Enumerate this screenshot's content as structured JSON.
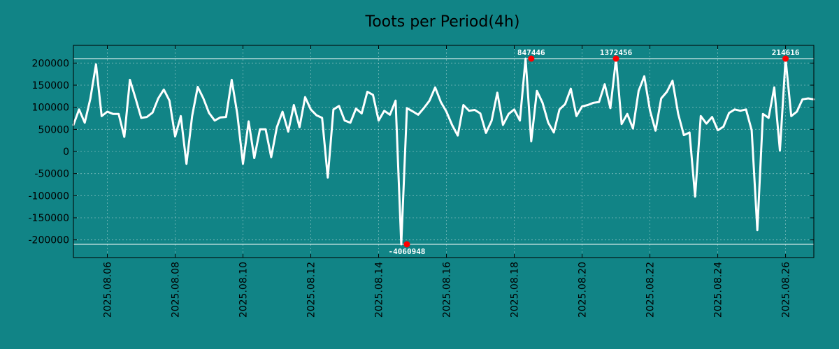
{
  "chart_data": {
    "type": "line",
    "title": "Toots per Period(4h)",
    "xlabel": "",
    "ylabel": "",
    "background_color": "#118486",
    "line_color": "#ffffff",
    "marker_color": "#ff0000",
    "grid": true,
    "legend": "none",
    "xlim": [
      "2025-08-05T00:00",
      "2025-08-26T20:00"
    ],
    "ylim": [
      -240000,
      240000
    ],
    "clip_bounds": [
      -210000,
      210000
    ],
    "y_ticks": [
      {
        "value": 200000,
        "label": "200000"
      },
      {
        "value": 150000,
        "label": "150000"
      },
      {
        "value": 100000,
        "label": "100000"
      },
      {
        "value": 50000,
        "label": "50000"
      },
      {
        "value": 0,
        "label": "0"
      },
      {
        "value": -50000,
        "label": "-50000"
      },
      {
        "value": -100000,
        "label": "-100000"
      },
      {
        "value": -150000,
        "label": "-150000"
      },
      {
        "value": -200000,
        "label": "-200000"
      }
    ],
    "x_ticks": [
      {
        "value": "2025-08-06T00:00",
        "label": "2025.08.06"
      },
      {
        "value": "2025-08-08T00:00",
        "label": "2025.08.08"
      },
      {
        "value": "2025-08-10T00:00",
        "label": "2025.08.10"
      },
      {
        "value": "2025-08-12T00:00",
        "label": "2025.08.12"
      },
      {
        "value": "2025-08-14T00:00",
        "label": "2025.08.14"
      },
      {
        "value": "2025-08-16T00:00",
        "label": "2025.08.16"
      },
      {
        "value": "2025-08-18T00:00",
        "label": "2025.08.18"
      },
      {
        "value": "2025-08-20T00:00",
        "label": "2025.08.20"
      },
      {
        "value": "2025-08-22T00:00",
        "label": "2025.08.22"
      },
      {
        "value": "2025-08-24T00:00",
        "label": "2025.08.24"
      },
      {
        "value": "2025-08-26T00:00",
        "label": "2025.08.26"
      }
    ],
    "series": [
      {
        "x": [
          "2025-08-05T00:00",
          "2025-08-05T04:00",
          "2025-08-05T08:00",
          "2025-08-05T12:00",
          "2025-08-05T16:00",
          "2025-08-05T20:00",
          "2025-08-06T00:00",
          "2025-08-06T04:00",
          "2025-08-06T08:00",
          "2025-08-06T12:00",
          "2025-08-06T16:00",
          "2025-08-06T20:00",
          "2025-08-07T00:00",
          "2025-08-07T04:00",
          "2025-08-07T08:00",
          "2025-08-07T12:00",
          "2025-08-07T16:00",
          "2025-08-07T20:00",
          "2025-08-08T00:00",
          "2025-08-08T04:00",
          "2025-08-08T08:00",
          "2025-08-08T12:00",
          "2025-08-08T16:00",
          "2025-08-08T20:00",
          "2025-08-09T00:00",
          "2025-08-09T04:00",
          "2025-08-09T08:00",
          "2025-08-09T12:00",
          "2025-08-09T16:00",
          "2025-08-09T20:00",
          "2025-08-10T00:00",
          "2025-08-10T04:00",
          "2025-08-10T08:00",
          "2025-08-10T12:00",
          "2025-08-10T16:00",
          "2025-08-10T20:00",
          "2025-08-11T00:00",
          "2025-08-11T04:00",
          "2025-08-11T08:00",
          "2025-08-11T12:00",
          "2025-08-11T16:00",
          "2025-08-11T20:00",
          "2025-08-12T00:00",
          "2025-08-12T04:00",
          "2025-08-12T08:00",
          "2025-08-12T12:00",
          "2025-08-12T16:00",
          "2025-08-12T20:00",
          "2025-08-13T00:00",
          "2025-08-13T04:00",
          "2025-08-13T08:00",
          "2025-08-13T12:00",
          "2025-08-13T16:00",
          "2025-08-13T20:00",
          "2025-08-14T00:00",
          "2025-08-14T04:00",
          "2025-08-14T08:00",
          "2025-08-14T12:00",
          "2025-08-14T16:00",
          "2025-08-14T20:00",
          "2025-08-15T00:00",
          "2025-08-15T04:00",
          "2025-08-15T08:00",
          "2025-08-15T12:00",
          "2025-08-15T16:00",
          "2025-08-15T20:00",
          "2025-08-16T00:00",
          "2025-08-16T04:00",
          "2025-08-16T08:00",
          "2025-08-16T12:00",
          "2025-08-16T16:00",
          "2025-08-16T20:00",
          "2025-08-17T00:00",
          "2025-08-17T04:00",
          "2025-08-17T08:00",
          "2025-08-17T12:00",
          "2025-08-17T16:00",
          "2025-08-17T20:00",
          "2025-08-18T00:00",
          "2025-08-18T04:00",
          "2025-08-18T08:00",
          "2025-08-18T12:00",
          "2025-08-18T16:00",
          "2025-08-18T20:00",
          "2025-08-19T00:00",
          "2025-08-19T04:00",
          "2025-08-19T08:00",
          "2025-08-19T12:00",
          "2025-08-19T16:00",
          "2025-08-19T20:00",
          "2025-08-20T00:00",
          "2025-08-20T04:00",
          "2025-08-20T08:00",
          "2025-08-20T12:00",
          "2025-08-20T16:00",
          "2025-08-20T20:00",
          "2025-08-21T00:00",
          "2025-08-21T04:00",
          "2025-08-21T08:00",
          "2025-08-21T12:00",
          "2025-08-21T16:00",
          "2025-08-21T20:00",
          "2025-08-22T00:00",
          "2025-08-22T04:00",
          "2025-08-22T08:00",
          "2025-08-22T12:00",
          "2025-08-22T16:00",
          "2025-08-22T20:00",
          "2025-08-23T00:00",
          "2025-08-23T04:00",
          "2025-08-23T08:00",
          "2025-08-23T12:00",
          "2025-08-23T16:00",
          "2025-08-23T20:00",
          "2025-08-24T00:00",
          "2025-08-24T04:00",
          "2025-08-24T08:00",
          "2025-08-24T12:00",
          "2025-08-24T16:00",
          "2025-08-24T20:00",
          "2025-08-25T00:00",
          "2025-08-25T04:00",
          "2025-08-25T08:00",
          "2025-08-25T12:00",
          "2025-08-25T16:00",
          "2025-08-25T20:00",
          "2025-08-26T00:00",
          "2025-08-26T04:00",
          "2025-08-26T08:00",
          "2025-08-26T12:00",
          "2025-08-26T16:00",
          "2025-08-26T20:00"
        ],
        "values": [
          60000,
          95000,
          65000,
          120000,
          197000,
          80000,
          90000,
          85000,
          85000,
          33000,
          162000,
          120000,
          76000,
          78000,
          88000,
          120000,
          140000,
          115000,
          34000,
          80000,
          -28000,
          80000,
          146000,
          120000,
          87000,
          70000,
          77000,
          78000,
          162000,
          85000,
          -28000,
          68000,
          -15000,
          50000,
          50000,
          -13000,
          55000,
          90000,
          45000,
          105000,
          55000,
          123000,
          95000,
          82000,
          76000,
          -59000,
          95000,
          103000,
          70000,
          65000,
          97000,
          86000,
          135000,
          128000,
          70000,
          92000,
          83000,
          115000,
          -210000,
          98000,
          91000,
          83000,
          98000,
          115000,
          145000,
          112000,
          90000,
          60000,
          36000,
          105000,
          92000,
          94000,
          86000,
          42000,
          70000,
          133000,
          60000,
          85000,
          95000,
          70000,
          210000,
          23000,
          137000,
          110000,
          65000,
          43000,
          95000,
          107000,
          142000,
          80000,
          102000,
          105000,
          110000,
          112000,
          152000,
          98000,
          210000,
          62000,
          85000,
          52000,
          137000,
          170000,
          93000,
          47000,
          120000,
          135000,
          160000,
          85000,
          37000,
          43000,
          -102000,
          80000,
          63000,
          78000,
          48000,
          56000,
          87000,
          95000,
          92000,
          95000,
          48000,
          -178000,
          85000,
          76000,
          145000,
          2000,
          210000,
          80000,
          90000,
          118000,
          120000,
          118000
        ]
      }
    ],
    "annotations": [
      {
        "x": "2025-08-14T20:00",
        "value": -210000,
        "label": "-4060948",
        "position": "below"
      },
      {
        "x": "2025-08-18T12:00",
        "value": 210000,
        "label": "847446",
        "position": "above"
      },
      {
        "x": "2025-08-21T00:00",
        "value": 210000,
        "label": "1372456",
        "position": "above"
      },
      {
        "x": "2025-08-26T00:00",
        "value": 210000,
        "label": "214616",
        "position": "above"
      }
    ]
  }
}
